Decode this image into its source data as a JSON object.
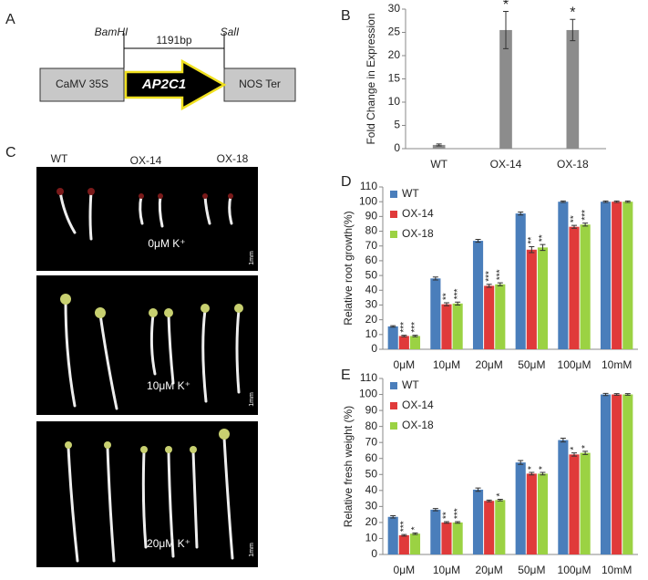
{
  "panel_labels": [
    "A",
    "B",
    "C",
    "D",
    "E"
  ],
  "construct": {
    "site_left": "BamHI",
    "length": "1191bp",
    "site_right": "SalI",
    "promoter": "CaMV 35S",
    "gene": "AP2C1",
    "terminator": "NOS Ter"
  },
  "seedlings": {
    "columns": [
      "WT",
      "OX-14",
      "OX-18"
    ],
    "panels": [
      {
        "label": "0μM K⁺",
        "scale": "1mm"
      },
      {
        "label": "10μM K⁺",
        "scale": "1mm"
      },
      {
        "label": "20μM K⁺",
        "scale": "1mm"
      }
    ]
  },
  "chart_data": [
    {
      "type": "bar",
      "y_label": "Fold Change in Expression",
      "categories": [
        "WT",
        "OX-14",
        "OX-18"
      ],
      "values": [
        0.8,
        25.5,
        25.5
      ],
      "errors": [
        0.2,
        4,
        2.3
      ],
      "significance": [
        null,
        "*",
        "*"
      ],
      "color": "#8c8c8c",
      "ylim": [
        0,
        30
      ],
      "yticks": [
        0,
        5,
        10,
        15,
        20,
        25,
        30
      ],
      "grid": false
    },
    {
      "type": "bar",
      "y_label": "Relative root growth(%)",
      "categories": [
        "0μM",
        "10μM",
        "20μM",
        "50μM",
        "100μM",
        "10mM"
      ],
      "legend": "upper left",
      "grid": false,
      "ylim": [
        0,
        110
      ],
      "yticks": [
        0,
        10,
        20,
        30,
        40,
        50,
        60,
        70,
        80,
        90,
        100,
        110
      ],
      "series": [
        {
          "name": "WT",
          "color": "#4a7ebb",
          "values": [
            15.5,
            48,
            73.5,
            92,
            100,
            100
          ],
          "errors": [
            0.5,
            1,
            1,
            1,
            0.5,
            0.5
          ]
        },
        {
          "name": "OX-14",
          "color": "#e03a3a",
          "values": [
            9,
            30.5,
            43,
            67.5,
            83,
            100
          ],
          "errors": [
            0.5,
            1,
            1,
            2,
            1,
            0.5
          ],
          "significance": [
            "***",
            "**",
            "***",
            "**",
            "**",
            null
          ]
        },
        {
          "name": "OX-18",
          "color": "#9bd243",
          "values": [
            9,
            31,
            44,
            69,
            84.5,
            100
          ],
          "errors": [
            0.5,
            1,
            1,
            2,
            1,
            0.5
          ],
          "significance": [
            "***",
            "***",
            "***",
            "**",
            "***",
            null
          ]
        }
      ]
    },
    {
      "type": "bar",
      "y_label": "Relative fresh weight (%)",
      "categories": [
        "0μM",
        "10μM",
        "20μM",
        "50μM",
        "100μM",
        "10mM"
      ],
      "legend": "upper left",
      "grid": false,
      "ylim": [
        0,
        110
      ],
      "yticks": [
        0,
        10,
        20,
        30,
        40,
        50,
        60,
        70,
        80,
        90,
        100,
        110
      ],
      "series": [
        {
          "name": "WT",
          "color": "#4a7ebb",
          "values": [
            23.5,
            28,
            40.5,
            57.5,
            71.5,
            100
          ],
          "errors": [
            0.7,
            0.7,
            1,
            1.2,
            1.2,
            0.7
          ]
        },
        {
          "name": "OX-14",
          "color": "#e03a3a",
          "values": [
            12,
            20,
            33.5,
            50.5,
            62.5,
            100
          ],
          "errors": [
            0.5,
            0.5,
            0.5,
            0.8,
            1,
            0.5
          ],
          "significance": [
            "***",
            "**",
            null,
            "*",
            "*",
            null
          ]
        },
        {
          "name": "OX-18",
          "color": "#9bd243",
          "values": [
            13,
            20,
            34,
            50.5,
            63.5,
            100
          ],
          "errors": [
            0.5,
            0.5,
            0.5,
            0.8,
            1,
            0.5
          ],
          "significance": [
            "*",
            "***",
            "*",
            "*",
            "*",
            null
          ]
        }
      ]
    }
  ]
}
